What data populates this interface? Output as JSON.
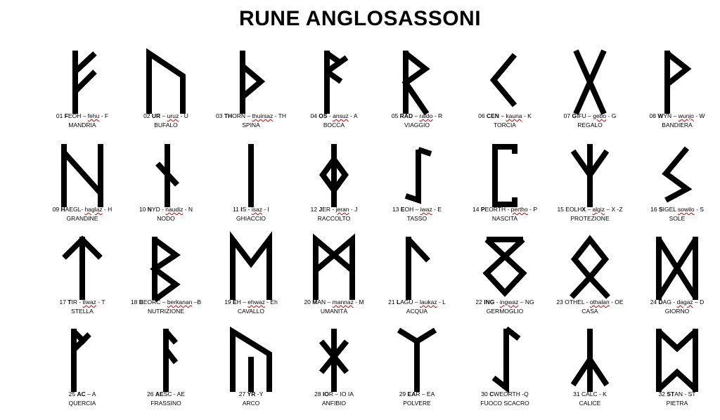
{
  "title": "RUNE ANGLOSASSONI",
  "runes": [
    {
      "pre": "01 ",
      "bold": "F",
      "mid": "EOH – ",
      "u": "fehu",
      "post": " - F",
      "meaning": "MANDRIA",
      "glyph": "fehu-rune-icon"
    },
    {
      "pre": "02 ",
      "bold": "UR",
      "mid": " – ",
      "u": "uruz",
      "post": " - U",
      "meaning": "BUFALO",
      "glyph": "uruz-rune-icon"
    },
    {
      "pre": "03 ",
      "bold": "TH",
      "mid": "ORN – ",
      "u": "thuirsaz",
      "post": " - TH",
      "meaning": "SPINA",
      "glyph": "thurisaz-rune-icon"
    },
    {
      "pre": "04 ",
      "bold": "OS",
      "mid": " - ",
      "u": "ansuz",
      "post": " - A",
      "meaning": "BOCCA",
      "glyph": "os-rune-icon"
    },
    {
      "pre": "05 ",
      "bold": "RAD",
      "mid": " – ",
      "u": "raido",
      "post": " - R",
      "meaning": "VIAGGIO",
      "glyph": "raido-rune-icon"
    },
    {
      "pre": "06 ",
      "bold": "CEN",
      "mid": " – ",
      "u": "kauna",
      "post": " - K",
      "meaning": "TORCIA",
      "glyph": "kauna-rune-icon"
    },
    {
      "pre": "07 ",
      "bold": "G",
      "mid": "IFU – ",
      "u": "gebo",
      "post": " - G",
      "meaning": "REGALO",
      "glyph": "gebo-rune-icon"
    },
    {
      "pre": "08 ",
      "bold": "W",
      "mid": "YN – ",
      "u": "wunjo",
      "post": " - W",
      "meaning": "BANDIERA",
      "glyph": "wunjo-rune-icon"
    },
    {
      "pre": "09 ",
      "bold": "H",
      "mid": "AEGL- ",
      "u": "haglaz",
      "post": " - H",
      "meaning": "GRANDINE",
      "glyph": "haglaz-rune-icon"
    },
    {
      "pre": "10 ",
      "bold": "N",
      "mid": "YD - ",
      "u": "naudiz",
      "post": " - N",
      "meaning": "NODO",
      "glyph": "naudiz-rune-icon"
    },
    {
      "pre": "11 ",
      "bold": "I",
      "mid": "S - ",
      "u": "isaz",
      "post": " - I",
      "meaning": "GHIACCIO",
      "glyph": "isaz-rune-icon"
    },
    {
      "pre": "12 ",
      "bold": "J",
      "mid": "ER - ",
      "u": "jeran",
      "post": " - J",
      "meaning": "RACCOLTO",
      "glyph": "jer-rune-icon"
    },
    {
      "pre": "13 ",
      "bold": "E",
      "mid": "OH – ",
      "u": "iwaz",
      "post": " - E",
      "meaning": "TASSO",
      "glyph": "eoh-rune-icon"
    },
    {
      "pre": "14 ",
      "bold": "P",
      "mid": "EORTH - ",
      "u": "pertho",
      "post": " - P",
      "meaning": "NASCITA",
      "glyph": "peorth-rune-icon"
    },
    {
      "pre": "15 EOLH",
      "bold": "X",
      "mid": " – ",
      "u": "algiz",
      "post": " – X -Z",
      "meaning": "PROTEZIONE",
      "glyph": "algiz-rune-icon"
    },
    {
      "pre": "16 ",
      "bold": "S",
      "mid": "IGEL ",
      "u": "sowilo",
      "post": "  - S",
      "meaning": "SOLE",
      "glyph": "sowilo-rune-icon"
    },
    {
      "pre": "17 ",
      "bold": "T",
      "mid": "IR - ",
      "u": "tiwaz",
      "post": " - T",
      "meaning": "STELLA",
      "glyph": "tiwaz-rune-icon"
    },
    {
      "pre": "18 ",
      "bold": "B",
      "mid": "EORC – ",
      "u": "berkanan",
      "post": " –B",
      "meaning": "NUTRIZIONE",
      "glyph": "berkanan-rune-icon"
    },
    {
      "pre": "19 ",
      "bold": "E",
      "mid": "H – ",
      "u": "ehwaz",
      "post": " - Eh",
      "meaning": "CAVALLO",
      "glyph": "ehwaz-rune-icon"
    },
    {
      "pre": "20 ",
      "bold": "M",
      "mid": "AN – ",
      "u": "mannaz",
      "post": " - M",
      "meaning": "UMANITÀ",
      "glyph": "mannaz-rune-icon"
    },
    {
      "pre": "21 ",
      "bold": "L",
      "mid": "AGU – ",
      "u": "laukaz",
      "post": " - L",
      "meaning": "ACQUA",
      "glyph": "laguz-rune-icon"
    },
    {
      "pre": "22 ",
      "bold": "ING",
      "mid": " - ",
      "u": "ingwaz",
      "post": " – NG",
      "meaning": "GERMOGLIO",
      "glyph": "ingwaz-rune-icon"
    },
    {
      "pre": "23 OTHEL  - ",
      "bold": "",
      "mid": "",
      "u": "othalan",
      "post": " - OE",
      "meaning": "CASA",
      "glyph": "othala-rune-icon"
    },
    {
      "pre": "24 ",
      "bold": "D",
      "mid": "AG - ",
      "u": "dagaz",
      "post": " – D",
      "meaning": "GIORNO",
      "glyph": "dagaz-rune-icon"
    },
    {
      "pre": "25 ",
      "bold": "AC",
      "mid": " – A",
      "u": "",
      "post": "",
      "meaning": "QUERCIA",
      "glyph": "ac-rune-icon"
    },
    {
      "pre": "26 ",
      "bold": "AE",
      "mid": "SC - AE",
      "u": "",
      "post": "",
      "meaning": "FRASSINO",
      "glyph": "aesc-rune-icon"
    },
    {
      "pre": "27 ",
      "bold": "YR",
      "mid": " -Y",
      "u": "",
      "post": "",
      "meaning": "ARCO",
      "glyph": "yr-rune-icon"
    },
    {
      "pre": "28 ",
      "bold": "IO",
      "mid": "R – IO IA",
      "u": "",
      "post": "",
      "meaning": "ANFIBIO",
      "glyph": "ior-rune-icon"
    },
    {
      "pre": "29 ",
      "bold": "EA",
      "mid": "R – EA",
      "u": "",
      "post": "",
      "meaning": "POLVERE",
      "glyph": "ear-rune-icon"
    },
    {
      "pre": "30 ",
      "bold": "C",
      "mid": "WEORTH -Q",
      "u": "",
      "post": "",
      "meaning": "FUOCO SCACRO",
      "glyph": "cweorth-rune-icon"
    },
    {
      "pre": "31 ",
      "bold": "",
      "mid": "CALC - K",
      "u": "",
      "post": "",
      "meaning": "CALICE",
      "glyph": "calc-rune-icon"
    },
    {
      "pre": "32 ",
      "bold": "ST",
      "mid": "AN - ST",
      "u": "",
      "post": "",
      "meaning": "PIETRA",
      "glyph": "stan-rune-icon"
    }
  ]
}
